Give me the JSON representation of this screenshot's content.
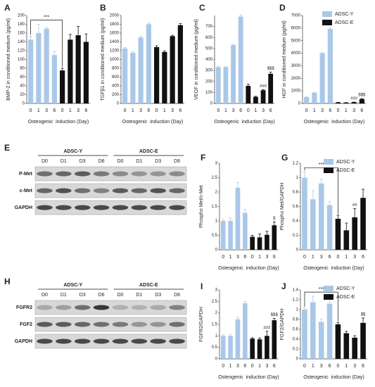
{
  "chart_data": [
    {
      "panel": "A",
      "type": "bar",
      "ylabel": "BMP-2 in conditioned medium (pg/ml)",
      "xlabel": "Osteogenic  induction (Day)",
      "categories": [
        "0",
        "1",
        "3",
        "6",
        "0",
        "1",
        "3",
        "6"
      ],
      "series": [
        {
          "name": "ADSC-Y",
          "color": "#a9c8e8",
          "values": [
            145,
            160,
            170,
            110,
            null,
            null,
            null,
            null
          ],
          "errors": [
            8,
            20,
            3,
            8,
            null,
            null,
            null,
            null
          ]
        },
        {
          "name": "ADSC-E",
          "color": "#111111",
          "values": [
            null,
            null,
            null,
            null,
            75,
            145,
            155,
            140
          ],
          "errors": [
            null,
            null,
            null,
            null,
            5,
            12,
            20,
            18
          ]
        }
      ],
      "ylim": [
        0,
        200
      ],
      "yticks": [
        0,
        20,
        40,
        60,
        80,
        100,
        120,
        140,
        160,
        180,
        200
      ],
      "annotations": [
        {
          "text": "***",
          "span": [
            0,
            4
          ]
        }
      ]
    },
    {
      "panel": "B",
      "type": "bar",
      "ylabel": "TGFβ1 in conditioned medium (pg/ml)",
      "xlabel": "Osteogenic  induction (Day)",
      "categories": [
        "0",
        "1",
        "3",
        "6",
        "0",
        "1",
        "3",
        "6"
      ],
      "series": [
        {
          "name": "ADSC-Y",
          "color": "#a9c8e8",
          "values": [
            1250,
            1150,
            1500,
            1800,
            null,
            null,
            null,
            null
          ],
          "errors": [
            20,
            25,
            30,
            25,
            null,
            null,
            null,
            null
          ]
        },
        {
          "name": "ADSC-E",
          "color": "#111111",
          "values": [
            null,
            null,
            null,
            null,
            1280,
            1170,
            1530,
            1780
          ],
          "errors": [
            null,
            null,
            null,
            null,
            30,
            25,
            20,
            35
          ]
        }
      ],
      "ylim": [
        0,
        2000
      ],
      "yticks": [
        0,
        200,
        400,
        600,
        800,
        1000,
        1200,
        1400,
        1600,
        1800,
        2000
      ]
    },
    {
      "panel": "C",
      "type": "bar",
      "ylabel": "VEGF in conditioned medium (pg/ml)",
      "xlabel": "Osteogenic  induction (Day)",
      "categories": [
        "0",
        "1",
        "3",
        "6",
        "0",
        "1",
        "3",
        "6"
      ],
      "series": [
        {
          "name": "ADSC-Y",
          "color": "#a9c8e8",
          "values": [
            330,
            330,
            530,
            790,
            null,
            null,
            null,
            null
          ],
          "errors": [
            5,
            5,
            5,
            15,
            null,
            null,
            null,
            null
          ]
        },
        {
          "name": "ADSC-E",
          "color": "#111111",
          "values": [
            null,
            null,
            null,
            null,
            160,
            60,
            120,
            270
          ],
          "errors": [
            null,
            null,
            null,
            null,
            15,
            5,
            5,
            15
          ]
        }
      ],
      "ylim": [
        0,
        800
      ],
      "yticks": [
        0,
        100,
        200,
        300,
        400,
        500,
        600,
        700
      ],
      "annotations": [
        {
          "text": "###",
          "index": 6
        },
        {
          "text": "$$$",
          "index": 7
        }
      ]
    },
    {
      "panel": "D",
      "type": "bar",
      "ylabel": "HGF in conditioned medium (pg/ml)",
      "xlabel": "Osteogenic  induction (Day)",
      "categories": [
        "0",
        "1",
        "3",
        "6",
        "0",
        "1",
        "3",
        "6"
      ],
      "series": [
        {
          "name": "ADSC-Y",
          "color": "#a9c8e8",
          "values": [
            500,
            850,
            4000,
            5950,
            null,
            null,
            null,
            null
          ],
          "errors": [
            30,
            40,
            50,
            150,
            null,
            null,
            null,
            null
          ]
        },
        {
          "name": "ADSC-E",
          "color": "#111111",
          "values": [
            null,
            null,
            null,
            null,
            80,
            60,
            100,
            350
          ],
          "errors": [
            null,
            null,
            null,
            null,
            10,
            10,
            10,
            40
          ]
        }
      ],
      "ylim": [
        0,
        7000
      ],
      "yticks": [
        0,
        1000,
        2000,
        3000,
        4000,
        5000,
        6000,
        7000
      ],
      "legend": "upper right",
      "annotations": [
        {
          "text": "###",
          "index": 6
        },
        {
          "text": "$$$",
          "index": 7
        }
      ]
    },
    {
      "panel": "F",
      "type": "bar",
      "ylabel": "Phospho Met/c-Met",
      "xlabel": "Osteogenic  induction (Day)",
      "categories": [
        "0",
        "1",
        "3",
        "6",
        "0",
        "1",
        "3",
        "6"
      ],
      "series": [
        {
          "name": "ADSC-Y",
          "color": "#a9c8e8",
          "values": [
            1.0,
            1.0,
            2.15,
            1.28,
            null,
            null,
            null,
            null
          ],
          "errors": [
            0.05,
            0.1,
            0.18,
            0.12,
            null,
            null,
            null,
            null
          ]
        },
        {
          "name": "ADSC-E",
          "color": "#111111",
          "values": [
            null,
            null,
            null,
            null,
            0.45,
            0.43,
            0.52,
            0.85
          ],
          "errors": [
            null,
            null,
            null,
            null,
            0.05,
            0.12,
            0.12,
            0.12
          ]
        }
      ],
      "ylim": [
        0,
        3
      ],
      "yticks": [
        0,
        0.5,
        1,
        1.5,
        2,
        2.5,
        3
      ],
      "annotations": [
        {
          "text": "$",
          "index": 7
        }
      ]
    },
    {
      "panel": "G",
      "type": "bar",
      "ylabel": "Phospho Met/GAPDH",
      "xlabel": "Osteogenic  induction (Day)",
      "categories": [
        "0",
        "1",
        "3",
        "6",
        "0",
        "1",
        "3",
        "6"
      ],
      "series": [
        {
          "name": "ADSC-Y",
          "color": "#a9c8e8",
          "values": [
            1.0,
            0.7,
            0.92,
            0.62,
            null,
            null,
            null,
            null
          ],
          "errors": [
            0.08,
            0.12,
            0.06,
            0.05,
            null,
            null,
            null,
            null
          ]
        },
        {
          "name": "ADSC-E",
          "color": "#111111",
          "values": [
            null,
            null,
            null,
            null,
            0.43,
            0.27,
            0.45,
            0.72
          ],
          "errors": [
            null,
            null,
            null,
            null,
            0.05,
            0.1,
            0.12,
            0.12
          ]
        }
      ],
      "ylim": [
        0,
        1.2
      ],
      "yticks": [
        0,
        0.2,
        0.4,
        0.6,
        0.8,
        1,
        1.2
      ],
      "legend": "upper right",
      "annotations": [
        {
          "text": "***",
          "span": [
            0,
            4
          ]
        },
        {
          "text": "##",
          "index": 6
        }
      ]
    },
    {
      "panel": "I",
      "type": "bar",
      "ylabel": "FGFR2/GAPDH",
      "xlabel": "Osteogenic  induction (Day)",
      "categories": [
        "0",
        "1",
        "3",
        "6",
        "0",
        "1",
        "3",
        "6"
      ],
      "series": [
        {
          "name": "ADSC-Y",
          "color": "#a9c8e8",
          "values": [
            1.0,
            1.0,
            1.72,
            2.42,
            null,
            null,
            null,
            null
          ],
          "errors": [
            0.04,
            0.06,
            0.08,
            0.08,
            null,
            null,
            null,
            null
          ]
        },
        {
          "name": "ADSC-E",
          "color": "#111111",
          "values": [
            null,
            null,
            null,
            null,
            0.88,
            0.85,
            1.0,
            1.68
          ],
          "errors": [
            null,
            null,
            null,
            null,
            0.04,
            0.06,
            0.2,
            0.08
          ]
        }
      ],
      "ylim": [
        0,
        3
      ],
      "yticks": [
        0,
        0.5,
        1,
        1.5,
        2,
        2.5,
        3
      ],
      "annotations": [
        {
          "text": "###",
          "index": 6
        },
        {
          "text": "$$$",
          "index": 7
        }
      ]
    },
    {
      "panel": "J",
      "type": "bar",
      "ylabel": "FGF2/GAPDH",
      "xlabel": "Osteogenic  induction (Day)",
      "categories": [
        "0",
        "1",
        "3",
        "6",
        "0",
        "1",
        "3",
        "6"
      ],
      "series": [
        {
          "name": "ADSC-Y",
          "color": "#a9c8e8",
          "values": [
            1.0,
            1.15,
            0.75,
            1.12,
            null,
            null,
            null,
            null
          ],
          "errors": [
            0.03,
            0.12,
            0.06,
            0.14,
            null,
            null,
            null,
            null
          ]
        },
        {
          "name": "ADSC-E",
          "color": "#111111",
          "values": [
            null,
            null,
            null,
            null,
            0.7,
            0.52,
            0.43,
            0.73
          ],
          "errors": [
            null,
            null,
            null,
            null,
            0.04,
            0.04,
            0.04,
            0.1
          ]
        }
      ],
      "ylim": [
        0,
        1.4
      ],
      "yticks": [
        0,
        0.2,
        0.4,
        0.6,
        0.8,
        1,
        1.2,
        1.4
      ],
      "legend": "upper right",
      "annotations": [
        {
          "text": "***",
          "span": [
            0,
            4
          ]
        },
        {
          "text": "$$",
          "index": 7
        }
      ]
    }
  ],
  "blots": [
    {
      "panel": "E",
      "groups": [
        "ADSC-Y",
        "ADSC-E"
      ],
      "lanes": [
        "D0",
        "D1",
        "D3",
        "D6",
        "D0",
        "D1",
        "D3",
        "D6"
      ],
      "rows": [
        "P-Met",
        "c-Met",
        "GAPDH"
      ]
    },
    {
      "panel": "H",
      "groups": [
        "ADSC-Y",
        "ADSC-E"
      ],
      "lanes": [
        "D0",
        "D1",
        "D3",
        "D6",
        "D0",
        "D1",
        "D3",
        "D6"
      ],
      "rows": [
        "FGFR2",
        "FGF2",
        "GAPDH"
      ]
    }
  ]
}
